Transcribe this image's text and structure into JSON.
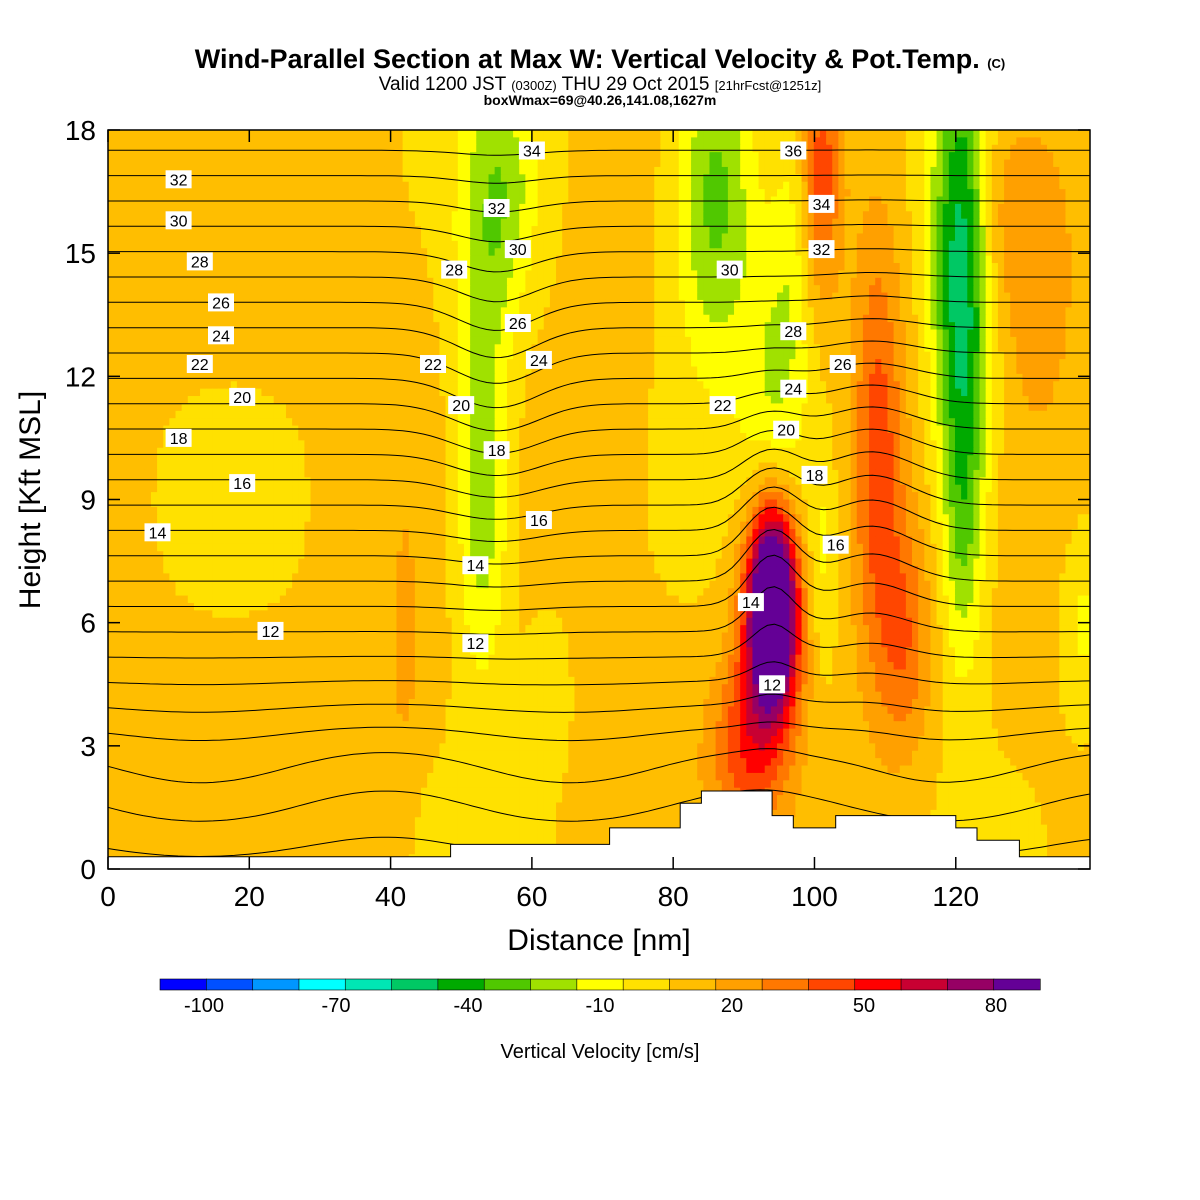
{
  "title": {
    "main": "Wind-Parallel Section at Max W: Vertical Velocity & Pot.Temp.",
    "main_suffix": "(C)",
    "valid": "Valid 1200 JST",
    "valid_utc": "(0300Z)",
    "valid_date": "THU 29 Oct 2015",
    "fcst": "[21hrFcst@1251z]",
    "box": "boxWmax=69@40.26,141.08,1627m"
  },
  "chart_data": {
    "type": "heatmap",
    "xlabel": "Distance [nm]",
    "ylabel": "Height [Kft MSL]",
    "xlim": [
      0,
      139
    ],
    "ylim": [
      0,
      18
    ],
    "x_ticks": [
      0,
      20,
      40,
      60,
      80,
      100,
      120
    ],
    "y_ticks": [
      0,
      3,
      6,
      9,
      12,
      15,
      18
    ],
    "fill_variable": "Vertical Velocity [cm/s]",
    "colorbar": {
      "label": "Vertical Velocity [cm/s]",
      "tick_labels": [
        "-100",
        "-70",
        "-40",
        "-10",
        "20",
        "50",
        "80"
      ],
      "tick_values": [
        -100,
        -70,
        -40,
        -10,
        20,
        50,
        80
      ],
      "min": -110,
      "max": 90,
      "colors": [
        "#0000ff",
        "#0050ff",
        "#0096ff",
        "#00ffff",
        "#00e6b4",
        "#00c864",
        "#00aa00",
        "#50c800",
        "#a0e100",
        "#ffff00",
        "#ffe100",
        "#ffbe00",
        "#ffa000",
        "#ff7800",
        "#ff4600",
        "#ff0000",
        "#c80032",
        "#960064",
        "#640096"
      ]
    },
    "velocity_features": [
      {
        "x": 53,
        "y": 13.5,
        "value": -25,
        "sx": 3,
        "sy": 4.5
      },
      {
        "x": 53,
        "y": 8,
        "value": -20,
        "sx": 2.5,
        "sy": 2.5
      },
      {
        "x": 57,
        "y": 16.5,
        "value": -20,
        "sx": 3,
        "sy": 2
      },
      {
        "x": 62,
        "y": 4.5,
        "value": -12,
        "sx": 2,
        "sy": 1.2
      },
      {
        "x": 86,
        "y": 16.5,
        "value": -40,
        "sx": 4,
        "sy": 3
      },
      {
        "x": 94,
        "y": 11.5,
        "value": -20,
        "sx": 3,
        "sy": 3
      },
      {
        "x": 97,
        "y": 15,
        "value": -15,
        "sx": 2,
        "sy": 3
      },
      {
        "x": 101,
        "y": 7.5,
        "value": -15,
        "sx": 1.5,
        "sy": 2
      },
      {
        "x": 121,
        "y": 14.5,
        "value": -65,
        "sx": 3,
        "sy": 4
      },
      {
        "x": 121,
        "y": 8,
        "value": -25,
        "sx": 2,
        "sy": 2.5
      },
      {
        "x": 138,
        "y": 6,
        "value": -15,
        "sx": 2,
        "sy": 1.5
      },
      {
        "x": 94,
        "y": 6.8,
        "value": 85,
        "sx": 2.3,
        "sy": 1.6
      },
      {
        "x": 94,
        "y": 5.6,
        "value": 60,
        "sx": 3,
        "sy": 2
      },
      {
        "x": 90,
        "y": 3,
        "value": 30,
        "sx": 3.5,
        "sy": 1.5
      },
      {
        "x": 109,
        "y": 10,
        "value": 35,
        "sx": 2.5,
        "sy": 4
      },
      {
        "x": 113,
        "y": 5.5,
        "value": 25,
        "sx": 2.5,
        "sy": 2
      },
      {
        "x": 101,
        "y": 17,
        "value": 35,
        "sx": 2,
        "sy": 2
      },
      {
        "x": 125,
        "y": 16,
        "value": 20,
        "sx": 3,
        "sy": 2
      },
      {
        "x": 132,
        "y": 15,
        "value": 15,
        "sx": 4,
        "sy": 3
      },
      {
        "x": 42,
        "y": 5.5,
        "value": 15,
        "sx": 1.2,
        "sy": 2
      }
    ],
    "contour_variable": "Potential Temperature (C)",
    "contour_labels": [
      {
        "value": 32,
        "x": 10,
        "y": 16.8
      },
      {
        "value": 30,
        "x": 10,
        "y": 15.8
      },
      {
        "value": 28,
        "x": 13,
        "y": 14.8
      },
      {
        "value": 26,
        "x": 16,
        "y": 13.8
      },
      {
        "value": 24,
        "x": 16,
        "y": 13.0
      },
      {
        "value": 22,
        "x": 13,
        "y": 12.3
      },
      {
        "value": 20,
        "x": 19,
        "y": 11.5
      },
      {
        "value": 18,
        "x": 10,
        "y": 10.5
      },
      {
        "value": 16,
        "x": 19,
        "y": 9.4
      },
      {
        "value": 14,
        "x": 7,
        "y": 8.2
      },
      {
        "value": 12,
        "x": 23,
        "y": 5.8
      },
      {
        "value": 34,
        "x": 60,
        "y": 17.5
      },
      {
        "value": 32,
        "x": 55,
        "y": 16.1
      },
      {
        "value": 30,
        "x": 58,
        "y": 15.1
      },
      {
        "value": 28,
        "x": 49,
        "y": 14.6
      },
      {
        "value": 26,
        "x": 58,
        "y": 13.3
      },
      {
        "value": 24,
        "x": 61,
        "y": 12.4
      },
      {
        "value": 22,
        "x": 46,
        "y": 12.3
      },
      {
        "value": 20,
        "x": 50,
        "y": 11.3
      },
      {
        "value": 18,
        "x": 55,
        "y": 10.2
      },
      {
        "value": 16,
        "x": 61,
        "y": 8.5
      },
      {
        "value": 14,
        "x": 52,
        "y": 7.4
      },
      {
        "value": 12,
        "x": 52,
        "y": 5.5
      },
      {
        "value": 36,
        "x": 97,
        "y": 17.5
      },
      {
        "value": 34,
        "x": 101,
        "y": 16.2
      },
      {
        "value": 32,
        "x": 101,
        "y": 15.1
      },
      {
        "value": 30,
        "x": 88,
        "y": 14.6
      },
      {
        "value": 28,
        "x": 97,
        "y": 13.1
      },
      {
        "value": 26,
        "x": 104,
        "y": 12.3
      },
      {
        "value": 24,
        "x": 97,
        "y": 11.7
      },
      {
        "value": 22,
        "x": 87,
        "y": 11.3
      },
      {
        "value": 20,
        "x": 96,
        "y": 10.7
      },
      {
        "value": 18,
        "x": 100,
        "y": 9.6
      },
      {
        "value": 16,
        "x": 103,
        "y": 7.9
      },
      {
        "value": 14,
        "x": 91,
        "y": 6.5
      },
      {
        "value": 12,
        "x": 94,
        "y": 4.5
      }
    ],
    "terrain": [
      [
        0,
        0.3
      ],
      [
        48.5,
        0.3
      ],
      [
        48.5,
        0.6
      ],
      [
        71,
        0.6
      ],
      [
        71,
        1.0
      ],
      [
        81,
        1.0
      ],
      [
        81,
        1.6
      ],
      [
        84,
        1.6
      ],
      [
        84,
        1.9
      ],
      [
        94,
        1.9
      ],
      [
        94,
        1.3
      ],
      [
        97,
        1.3
      ],
      [
        97,
        1.0
      ],
      [
        103,
        1.0
      ],
      [
        103,
        1.3
      ],
      [
        120,
        1.3
      ],
      [
        120,
        1.0
      ],
      [
        123,
        1.0
      ],
      [
        123,
        0.7
      ],
      [
        129,
        0.7
      ],
      [
        129,
        0.3
      ],
      [
        139,
        0.3
      ]
    ]
  }
}
